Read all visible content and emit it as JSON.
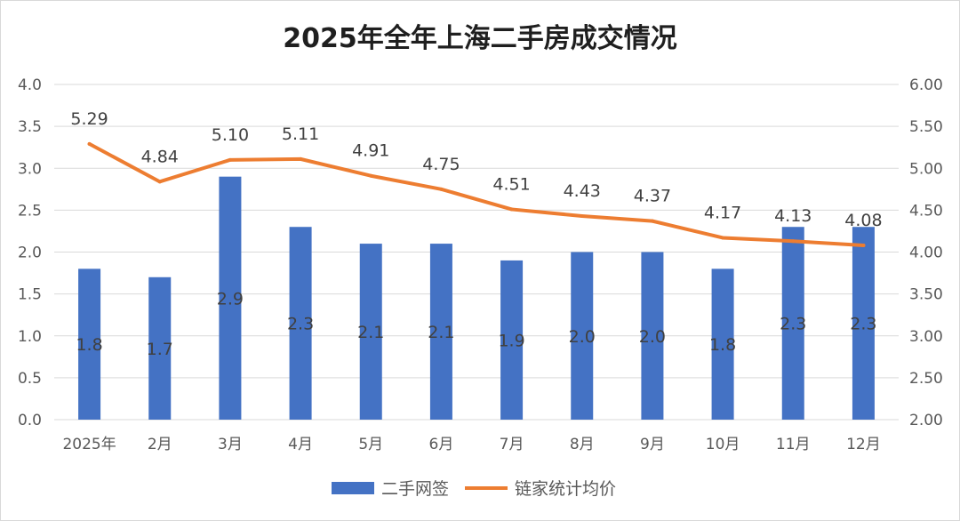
{
  "chart_data": {
    "type": "bar",
    "title": "2025年全年上海二手房成交情况",
    "categories": [
      "2025年",
      "2月",
      "3月",
      "4月",
      "5月",
      "6月",
      "7月",
      "8月",
      "9月",
      "10月",
      "11月",
      "12月"
    ],
    "series": [
      {
        "name": "二手网签",
        "type": "bar",
        "axis": "left",
        "color": "#4472C4",
        "values": [
          1.8,
          1.7,
          2.9,
          2.3,
          2.1,
          2.1,
          1.9,
          2.0,
          2.0,
          1.8,
          2.3,
          2.3
        ],
        "labels": [
          "1.8",
          "1.7",
          "2.9",
          "2.3",
          "2.1",
          "2.1",
          "1.9",
          "2.0",
          "2.0",
          "1.8",
          "2.3",
          "2.3"
        ]
      },
      {
        "name": "链家统计均价",
        "type": "line",
        "axis": "right",
        "color": "#ED7D31",
        "values": [
          5.29,
          4.84,
          5.1,
          5.11,
          4.91,
          4.75,
          4.51,
          4.43,
          4.37,
          4.17,
          4.13,
          4.08
        ],
        "labels": [
          "5.29",
          "4.84",
          "5.10",
          "5.11",
          "4.91",
          "4.75",
          "4.51",
          "4.43",
          "4.37",
          "4.17",
          "4.13",
          "4.08"
        ]
      }
    ],
    "left_axis": {
      "ylim": [
        0,
        4.0
      ],
      "ticks": [
        "0.0",
        "0.5",
        "1.0",
        "1.5",
        "2.0",
        "2.5",
        "3.0",
        "3.5",
        "4.0"
      ]
    },
    "right_axis": {
      "ylim": [
        2.0,
        6.0
      ],
      "ticks": [
        "2.00",
        "2.50",
        "3.00",
        "3.50",
        "4.00",
        "4.50",
        "5.00",
        "5.50",
        "6.00"
      ]
    },
    "grid": true,
    "legend_position": "bottom-center",
    "xlabel": "",
    "ylabel": ""
  }
}
